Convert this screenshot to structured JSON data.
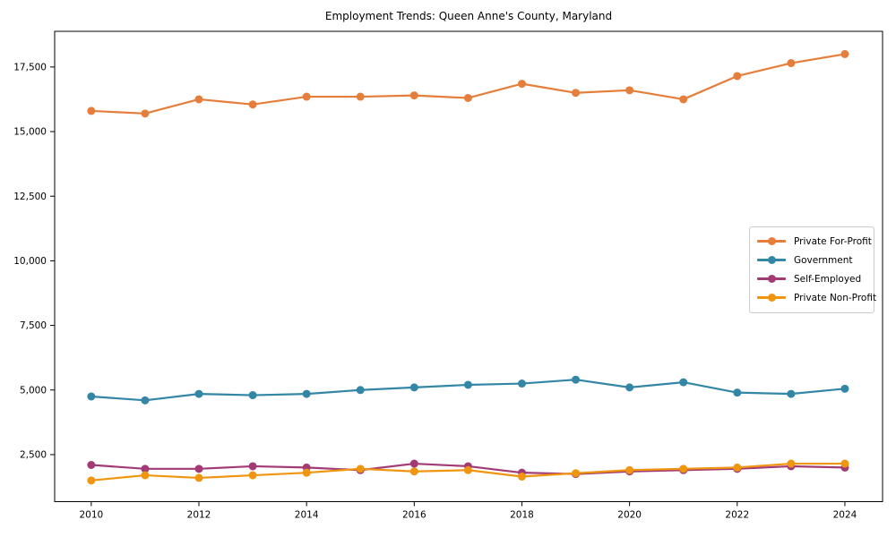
{
  "title": "Employment Trends: Queen Anne's County, Maryland",
  "chart_data": {
    "type": "line",
    "title": "Employment Trends: Queen Anne's County, Maryland",
    "xlabel": "",
    "ylabel": "",
    "x": [
      2010,
      2011,
      2012,
      2013,
      2014,
      2015,
      2016,
      2017,
      2018,
      2019,
      2020,
      2021,
      2022,
      2023,
      2024
    ],
    "series": [
      {
        "name": "Private For-Profit",
        "color": "#e57e3b",
        "values": [
          15800,
          15700,
          16250,
          16050,
          16350,
          16350,
          16400,
          16300,
          16850,
          16500,
          16600,
          16250,
          17150,
          17650,
          18000
        ]
      },
      {
        "name": "Government",
        "color": "#3386a6",
        "values": [
          4750,
          4600,
          4850,
          4800,
          4850,
          5000,
          5100,
          5200,
          5250,
          5400,
          5100,
          5300,
          4900,
          4850,
          5050
        ]
      },
      {
        "name": "Self-Employed",
        "color": "#a23a76",
        "values": [
          2100,
          1950,
          1950,
          2050,
          2000,
          1900,
          2150,
          2050,
          1800,
          1750,
          1850,
          1900,
          1950,
          2050,
          2000
        ]
      },
      {
        "name": "Private Non-Profit",
        "color": "#f0950f",
        "values": [
          1500,
          1700,
          1600,
          1700,
          1800,
          1950,
          1850,
          1900,
          1650,
          1780,
          1900,
          1950,
          2000,
          2150,
          2150
        ]
      }
    ],
    "xticks": [
      2010,
      2012,
      2014,
      2016,
      2018,
      2020,
      2022,
      2024
    ],
    "xtick_labels": [
      "2010",
      "2012",
      "2014",
      "2016",
      "2018",
      "2020",
      "2022",
      "2024"
    ],
    "yticks": [
      2500,
      5000,
      7500,
      10000,
      12500,
      15000,
      17500
    ],
    "ytick_labels": [
      "2,500",
      "5,000",
      "7,500",
      "10,000",
      "12,500",
      "15,000",
      "17,500"
    ],
    "xlim": [
      2009.32,
      2024.7
    ],
    "ylim": [
      680,
      18880
    ],
    "grid": false,
    "legend_position": "center right",
    "axis_color": "#000000",
    "tick_label_color": "#000000"
  }
}
